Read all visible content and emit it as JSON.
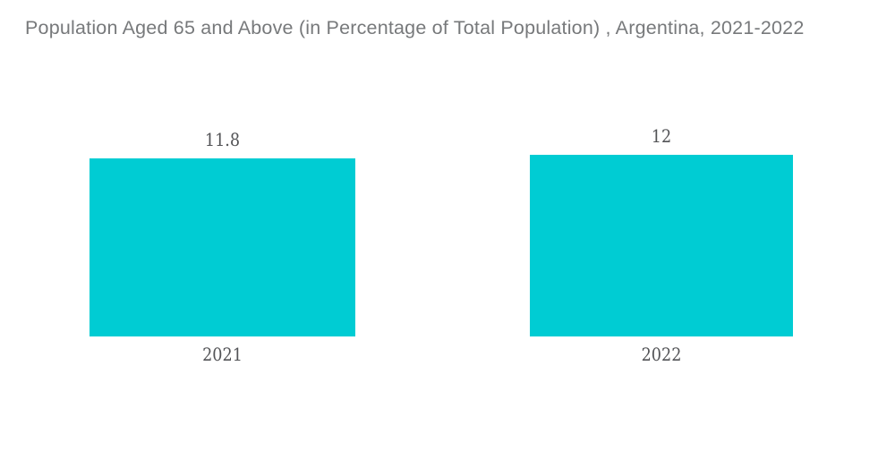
{
  "title": "Population Aged 65 and Above (in Percentage of Total Population) , Argentina, 2021-2022",
  "colors": {
    "bar": "#00ccd3",
    "title_text": "#77797b",
    "label_text": "#525356",
    "background": "#ffffff"
  },
  "chart_data": {
    "type": "bar",
    "title": "Population Aged 65 and Above (in Percentage of Total Population) , Argentina, 2021-2022",
    "categories": [
      "2021",
      "2022"
    ],
    "values": [
      11.8,
      12
    ],
    "value_labels": [
      "11.8",
      "12"
    ],
    "series": [
      {
        "name": "Population Aged 65 and Above (% of Total Population)",
        "values": [
          11.8,
          12
        ]
      }
    ],
    "xlabel": "",
    "ylabel": "",
    "ylim": [
      0,
      12.6
    ],
    "grid": false,
    "legend": false,
    "axes_visible": false,
    "bar_color": "#00ccd3"
  }
}
